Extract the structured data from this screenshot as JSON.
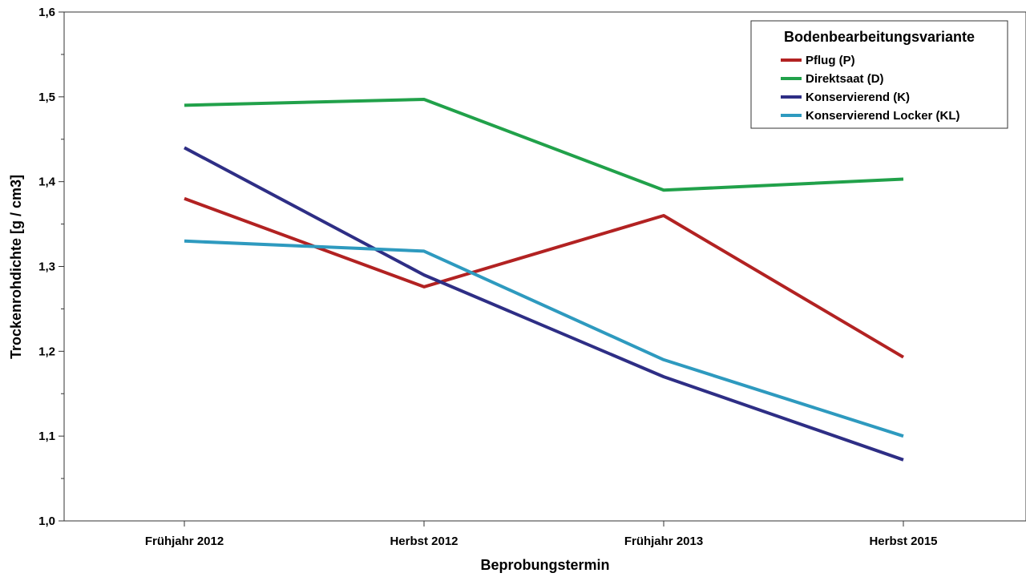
{
  "chart_data": {
    "type": "line",
    "xlabel": "Beprobungstermin",
    "ylabel": "Trockenrohdichte [g / cm3]",
    "categories": [
      "Frühjahr 2012",
      "Herbst 2012",
      "Frühjahr 2013",
      "Herbst 2015"
    ],
    "ylim": [
      1.0,
      1.6
    ],
    "yticks": [
      1.0,
      1.1,
      1.2,
      1.3,
      1.4,
      1.5,
      1.6
    ],
    "ytick_labels": [
      "1,0",
      "1,1",
      "1,2",
      "1,3",
      "1,4",
      "1,5",
      "1,6"
    ],
    "grid": false,
    "legend": {
      "title": "Bodenbearbeitungsvariante",
      "placement": "top-right"
    },
    "series": [
      {
        "name": "Pflug (P)",
        "color": "#b22222",
        "values": [
          1.38,
          1.276,
          1.36,
          1.193
        ]
      },
      {
        "name": "Direktsaat (D)",
        "color": "#21a14a",
        "values": [
          1.49,
          1.497,
          1.39,
          1.403
        ]
      },
      {
        "name": "Konservierend (K)",
        "color": "#2e2e85",
        "values": [
          1.44,
          1.29,
          1.17,
          1.072
        ]
      },
      {
        "name": "Konservierend Locker (KL)",
        "color": "#2e9abf",
        "values": [
          1.33,
          1.318,
          1.19,
          1.1
        ]
      }
    ]
  }
}
